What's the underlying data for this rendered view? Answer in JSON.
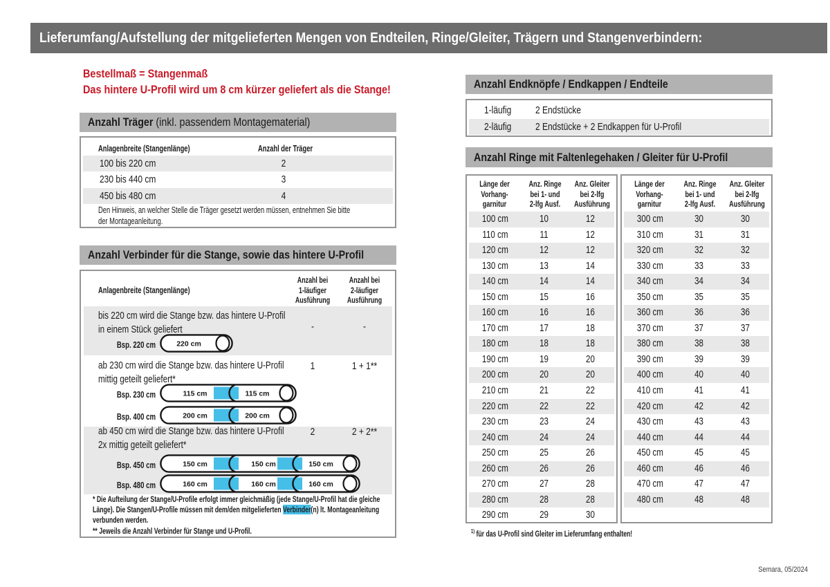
{
  "page": {
    "title": "Lieferumfang/Aufstellung der mitgelieferten Mengen von Endteilen, Ringe/Gleiter, Trägern und Stangenverbindern:",
    "footer": "Semara, 05/2024"
  },
  "colors": {
    "accent_red": "#c81a28",
    "connector_cyan": "#45bee8",
    "header_bar_gray": "#b2b2b2",
    "title_bar_gray": "#6d6d6d",
    "row_gray": "#e8e8e8"
  },
  "notice": {
    "line1": "Bestellmaß = Stangenmaß",
    "line2": "Das hintere U-Profil wird um 8 cm kürzer geliefert als die Stange!"
  },
  "traeger": {
    "heading_bold": "Anzahl Träger",
    "heading_rest": " (inkl. passendem Montagematerial)",
    "col1": "Anlagenbreite (Stangenlänge)",
    "col2": "Anzahl der Träger",
    "rows": [
      {
        "range": "100 bis 220 cm",
        "count": "2"
      },
      {
        "range": "230 bis 440 cm",
        "count": "3"
      },
      {
        "range": "450 bis 480 cm",
        "count": "4"
      }
    ],
    "note1": "Den Hinweis, an welcher Stelle die Träger gesetzt werden müssen, entnehmen Sie bitte",
    "note2": "der Montageanleitung."
  },
  "verbinder": {
    "heading": "Anzahl Verbinder für die Stange, sowie das hintere U-Profil",
    "col0": "Anlagenbreite (Stangenlänge)",
    "col1a": "Anzahl bei",
    "col1b": "1-läufiger",
    "col1c": "Ausführung",
    "col2a": "Anzahl bei",
    "col2b": "2-läufiger",
    "col2c": "Ausführung",
    "s1": {
      "text1": "bis 220 cm wird die Stange bzw. das hintere U-Profil",
      "text2": "in einem Stück geliefert",
      "v1": "-",
      "v2": "-",
      "ex1_label": "Bsp. 220 cm",
      "ex1_segments": [
        "220 cm"
      ]
    },
    "s2": {
      "text1": "ab 230 cm wird die Stange bzw. das hintere U-Profil",
      "text2": "mittig geteilt geliefert*",
      "v1": "1",
      "v2": "1 + 1**",
      "ex1_label": "Bsp. 230 cm",
      "ex1_segments": [
        "115 cm",
        "115 cm"
      ],
      "ex2_label": "Bsp. 400 cm",
      "ex2_segments": [
        "200 cm",
        "200 cm"
      ]
    },
    "s3": {
      "text1": "ab 450 cm wird die Stange bzw. das hintere U-Profil",
      "text2": "2x mittig geteilt geliefert*",
      "v1": "2",
      "v2": "2 + 2**",
      "ex1_label": "Bsp. 450 cm",
      "ex1_segments": [
        "150 cm",
        "150 cm",
        "150 cm"
      ],
      "ex2_label": "Bsp. 480 cm",
      "ex2_segments": [
        "160 cm",
        "160 cm",
        "160 cm"
      ]
    },
    "fn1a": "* Die Aufteilung der Stange/U-Profile erfolgt immer gleichmäßig (jede Stange/U-Profil hat die gleiche",
    "fn1b_pre": "Länge). Die Stangen/U-Profile müssen mit dem/den mitgelieferten ",
    "fn1b_hl": "Verbinder",
    "fn1b_post": "(n) lt. Montageanleitung",
    "fn1c": "verbunden werden.",
    "fn2": "** Jeweils die Anzahl Verbinder für Stange und U-Profil."
  },
  "endteile": {
    "heading": "Anzahl Endknöpfe / Endkappen / Endteile",
    "rows": [
      {
        "type": "1-läufig",
        "content": "2 Endstücke"
      },
      {
        "type": "2-läufig",
        "content": "2 Endstücke + 2 Endkappen für U-Profil"
      }
    ]
  },
  "ringe": {
    "heading": "Anzahl Ringe mit Faltenlegehaken / Gleiter für U-Profil",
    "col1a": "Länge der",
    "col1b": "Vorhang-",
    "col1c": "garnitur",
    "col2a": "Anz. Ringe",
    "col2b": "bei 1- und",
    "col2c": "2-lfg Ausf.",
    "col3a": "Anz. Gleiter",
    "col3b": "bei 2-lfg",
    "col3c": "Ausführung",
    "sup": "1)",
    "table1": [
      [
        "100 cm",
        "10",
        "12"
      ],
      [
        "110 cm",
        "11",
        "12"
      ],
      [
        "120 cm",
        "12",
        "12"
      ],
      [
        "130 cm",
        "13",
        "14"
      ],
      [
        "140 cm",
        "14",
        "14"
      ],
      [
        "150 cm",
        "15",
        "16"
      ],
      [
        "160 cm",
        "16",
        "16"
      ],
      [
        "170 cm",
        "17",
        "18"
      ],
      [
        "180 cm",
        "18",
        "18"
      ],
      [
        "190 cm",
        "19",
        "20"
      ],
      [
        "200 cm",
        "20",
        "20"
      ],
      [
        "210 cm",
        "21",
        "22"
      ],
      [
        "220 cm",
        "22",
        "22"
      ],
      [
        "230 cm",
        "23",
        "24"
      ],
      [
        "240 cm",
        "24",
        "24"
      ],
      [
        "250 cm",
        "25",
        "26"
      ],
      [
        "260 cm",
        "26",
        "26"
      ],
      [
        "270 cm",
        "27",
        "28"
      ],
      [
        "280 cm",
        "28",
        "28"
      ],
      [
        "290 cm",
        "29",
        "30"
      ]
    ],
    "table2": [
      [
        "300 cm",
        "30",
        "30"
      ],
      [
        "310 cm",
        "31",
        "31"
      ],
      [
        "320 cm",
        "32",
        "32"
      ],
      [
        "330 cm",
        "33",
        "33"
      ],
      [
        "340 cm",
        "34",
        "34"
      ],
      [
        "350 cm",
        "35",
        "35"
      ],
      [
        "360 cm",
        "36",
        "36"
      ],
      [
        "370 cm",
        "37",
        "37"
      ],
      [
        "380 cm",
        "38",
        "38"
      ],
      [
        "390 cm",
        "39",
        "39"
      ],
      [
        "400 cm",
        "40",
        "40"
      ],
      [
        "410 cm",
        "41",
        "41"
      ],
      [
        "420 cm",
        "42",
        "42"
      ],
      [
        "430 cm",
        "43",
        "43"
      ],
      [
        "440 cm",
        "44",
        "44"
      ],
      [
        "450 cm",
        "45",
        "45"
      ],
      [
        "460 cm",
        "46",
        "46"
      ],
      [
        "470 cm",
        "47",
        "47"
      ],
      [
        "480 cm",
        "48",
        "48"
      ]
    ],
    "footnote_sup": "1)",
    "footnote": " für das U-Profil sind Gleiter im Lieferumfang enthalten!"
  }
}
